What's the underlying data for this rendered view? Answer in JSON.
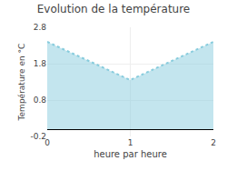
{
  "chart_data": {
    "type": "area",
    "title": "Evolution de la température",
    "xlabel": "heure par heure",
    "ylabel": "Température en °C",
    "x": [
      0,
      1,
      2
    ],
    "values": [
      2.4,
      1.35,
      2.4
    ],
    "color": "#88ccdd",
    "line_style": "dotted",
    "xlim": [
      0,
      2
    ],
    "ylim": [
      -0.2,
      2.8
    ],
    "xticks": [
      0,
      1,
      2
    ],
    "yticks": [
      -0.2,
      0.8,
      1.8,
      2.8
    ],
    "grid": true
  }
}
